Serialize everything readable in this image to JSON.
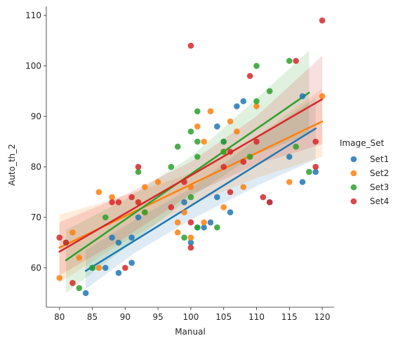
{
  "chart_data": {
    "type": "scatter",
    "title": "",
    "xlabel": "Manual",
    "ylabel": "Auto_th_2",
    "xlim": [
      78.0,
      121.8
    ],
    "ylim": [
      52.2,
      111.8
    ],
    "xticks": [
      80,
      85,
      90,
      95,
      100,
      105,
      110,
      115,
      120
    ],
    "yticks": [
      60,
      70,
      80,
      90,
      100,
      110
    ],
    "grid": false,
    "legend": {
      "title": "Image_Set",
      "placement": "right"
    },
    "series": [
      {
        "name": "Set1",
        "color": "#1f77b4",
        "points": [
          [
            84,
            55
          ],
          [
            85,
            60
          ],
          [
            87,
            60
          ],
          [
            88,
            66
          ],
          [
            89,
            59
          ],
          [
            89,
            65
          ],
          [
            91,
            61
          ],
          [
            91,
            66
          ],
          [
            92,
            70
          ],
          [
            99,
            73
          ],
          [
            100,
            65
          ],
          [
            101,
            68
          ],
          [
            102,
            68
          ],
          [
            103,
            69
          ],
          [
            104,
            74
          ],
          [
            104,
            88
          ],
          [
            105,
            85
          ],
          [
            106,
            71
          ],
          [
            107,
            92
          ],
          [
            108,
            93
          ],
          [
            112,
            73
          ],
          [
            115,
            82
          ],
          [
            117,
            77
          ],
          [
            117,
            94
          ],
          [
            119,
            79
          ]
        ],
        "fit": {
          "x": [
            84,
            119
          ],
          "y": [
            59.4,
            87.6
          ]
        },
        "band": {
          "x": [
            84,
            91.5,
            100,
            110,
            119
          ],
          "low": [
            55.8,
            63.0,
            69.5,
            76.2,
            81.5
          ],
          "high": [
            63.5,
            69.5,
            75.7,
            85.5,
            93.8
          ]
        }
      },
      {
        "name": "Set2",
        "color": "#ff7f0e",
        "points": [
          [
            80,
            58
          ],
          [
            82,
            67
          ],
          [
            83,
            62
          ],
          [
            86,
            60
          ],
          [
            86,
            75
          ],
          [
            88,
            74
          ],
          [
            93,
            71
          ],
          [
            93,
            76
          ],
          [
            95,
            77
          ],
          [
            98,
            67
          ],
          [
            98,
            69
          ],
          [
            99,
            71
          ],
          [
            100,
            66
          ],
          [
            100,
            76
          ],
          [
            101,
            88
          ],
          [
            102,
            69
          ],
          [
            102,
            85
          ],
          [
            103,
            91
          ],
          [
            105,
            72
          ],
          [
            105,
            83
          ],
          [
            106,
            89
          ],
          [
            107,
            87
          ],
          [
            108,
            76
          ],
          [
            109,
            82
          ],
          [
            110,
            92
          ],
          [
            115,
            77
          ],
          [
            120,
            94
          ]
        ],
        "fit": {
          "x": [
            80,
            120
          ],
          "y": [
            64.0,
            89.0
          ]
        },
        "band": {
          "x": [
            80,
            88,
            100,
            110,
            120
          ],
          "low": [
            57.0,
            63.8,
            72.5,
            77.8,
            82.0
          ],
          "high": [
            70.5,
            73.5,
            78.7,
            86.0,
            95.5
          ]
        }
      },
      {
        "name": "Set3",
        "color": "#2ca02c",
        "points": [
          [
            81,
            65
          ],
          [
            83,
            56
          ],
          [
            85,
            60
          ],
          [
            87,
            70
          ],
          [
            92,
            79
          ],
          [
            93,
            71
          ],
          [
            97,
            80
          ],
          [
            98,
            84
          ],
          [
            99,
            66
          ],
          [
            100,
            74
          ],
          [
            100,
            87
          ],
          [
            101,
            68
          ],
          [
            101,
            82
          ],
          [
            101,
            85
          ],
          [
            101,
            91
          ],
          [
            104,
            68
          ],
          [
            105,
            83
          ],
          [
            105,
            85
          ],
          [
            109,
            82
          ],
          [
            110,
            93
          ],
          [
            110,
            100
          ],
          [
            112,
            95
          ],
          [
            115,
            101
          ],
          [
            116,
            84
          ],
          [
            118,
            79
          ]
        ],
        "fit": {
          "x": [
            81,
            118
          ],
          "y": [
            61.5,
            94.7
          ]
        },
        "band": {
          "x": [
            81,
            90,
            100,
            110,
            118
          ],
          "low": [
            55.0,
            64.0,
            74.0,
            82.5,
            86.5
          ],
          "high": [
            67.5,
            73.5,
            82.0,
            93.5,
            103.0
          ]
        }
      },
      {
        "name": "Set4",
        "color": "#d62728",
        "points": [
          [
            80,
            66
          ],
          [
            81,
            65
          ],
          [
            82,
            57
          ],
          [
            88,
            73
          ],
          [
            89,
            73
          ],
          [
            90,
            60
          ],
          [
            91,
            74
          ],
          [
            92,
            73
          ],
          [
            92,
            80
          ],
          [
            97,
            72
          ],
          [
            99,
            77
          ],
          [
            100,
            64
          ],
          [
            100,
            69
          ],
          [
            100,
            104
          ],
          [
            105,
            80
          ],
          [
            106,
            75
          ],
          [
            106,
            83
          ],
          [
            108,
            81
          ],
          [
            109,
            98
          ],
          [
            110,
            85
          ],
          [
            111,
            74
          ],
          [
            112,
            73
          ],
          [
            116,
            101
          ],
          [
            119,
            80
          ],
          [
            119,
            85
          ],
          [
            120,
            109
          ]
        ],
        "fit": {
          "x": [
            80,
            120
          ],
          "y": [
            63.2,
            93.4
          ]
        },
        "band": {
          "x": [
            80,
            90,
            100,
            110,
            120
          ],
          "low": [
            58.5,
            66.0,
            74.5,
            80.5,
            84.5
          ],
          "high": [
            69.0,
            74.5,
            81.0,
            90.0,
            102.0
          ]
        }
      }
    ]
  }
}
